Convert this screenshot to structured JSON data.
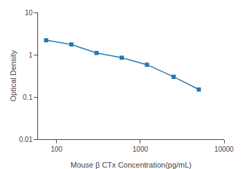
{
  "chart_data": {
    "type": "line",
    "x": [
      75,
      150,
      300,
      600,
      1200,
      2500,
      5000
    ],
    "values": [
      2.2,
      1.75,
      1.1,
      0.85,
      0.58,
      0.3,
      0.15
    ],
    "xlabel": "Mouse β CTx Concentration(pg/mL)",
    "ylabel": "Optical Density",
    "log": true,
    "xlim": [
      60,
      10000
    ],
    "ylim": [
      0.01,
      10
    ],
    "xticks": [
      100,
      1000,
      10000
    ],
    "yticks": [
      0.01,
      0.1,
      1,
      10
    ],
    "marker": "square",
    "line_style": "solid",
    "grid": false
  }
}
